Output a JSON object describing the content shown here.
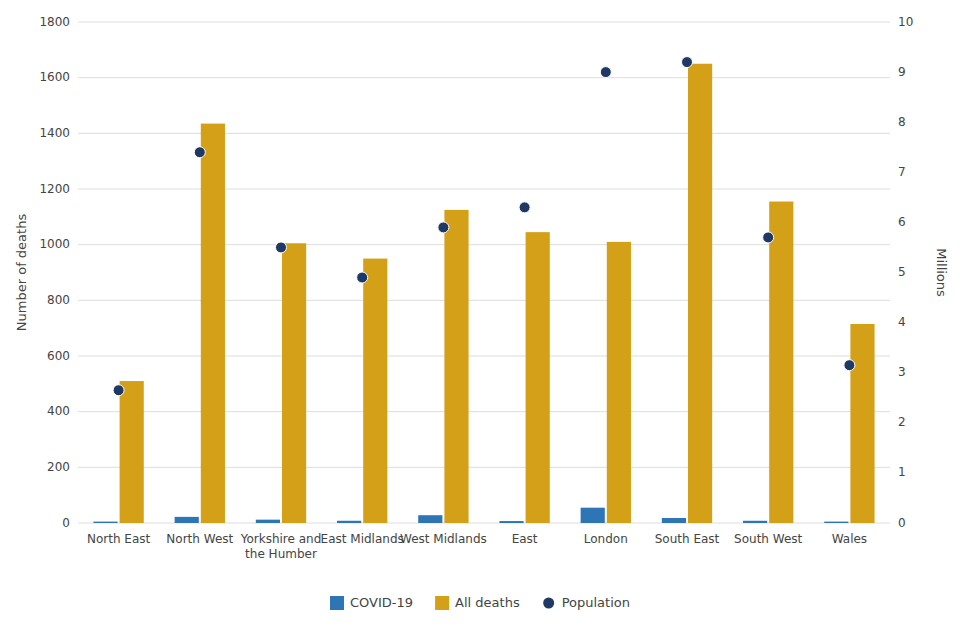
{
  "chart_data": {
    "type": "bar",
    "categories": [
      "North East",
      "North West",
      "Yorkshire and\nthe Humber",
      "East Midlands",
      "West Midlands",
      "East",
      "London",
      "South East",
      "South West",
      "Wales"
    ],
    "series": [
      {
        "name": "COVID-19",
        "color": "#2e75b6",
        "values": [
          5,
          22,
          12,
          8,
          28,
          7,
          55,
          18,
          8,
          5
        ]
      },
      {
        "name": "All deaths",
        "color": "#d4a017",
        "values": [
          510,
          1435,
          1005,
          950,
          1125,
          1045,
          1010,
          1650,
          1155,
          715
        ]
      },
      {
        "name": "Population",
        "type": "scatter",
        "axis": "y2",
        "color": "#1f3864",
        "values": [
          2.65,
          7.4,
          5.5,
          4.9,
          5.9,
          6.3,
          9.0,
          9.2,
          5.7,
          3.15
        ]
      }
    ],
    "ylabel": "Number of deaths",
    "y2label": "Millions",
    "ylim": [
      0,
      1800
    ],
    "yticks": [
      0,
      200,
      400,
      600,
      800,
      1000,
      1200,
      1400,
      1600,
      1800
    ],
    "y2lim": [
      0,
      10
    ],
    "y2ticks": [
      0,
      1,
      2,
      3,
      4,
      5,
      6,
      7,
      8,
      9,
      10
    ],
    "grid": true,
    "legend": "bottom"
  }
}
